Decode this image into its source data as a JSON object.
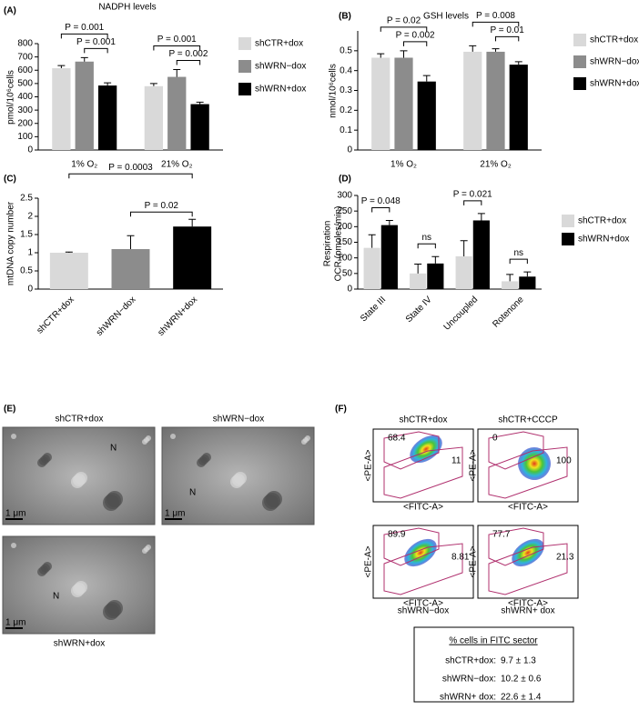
{
  "chart_data": [
    {
      "type": "bar",
      "panel_label": "(A)",
      "title": "NADPH levels",
      "y_label": [
        "pmol/10⁶cells"
      ],
      "categories": [
        "1% O₂",
        "21% O₂"
      ],
      "series": [
        {
          "name": "shCTR+dox",
          "color": "#d9d9d9",
          "values": [
            615,
            480
          ],
          "errors": [
            20,
            20
          ]
        },
        {
          "name": "shWRN−dox",
          "color": "#8c8c8c",
          "values": [
            665,
            550
          ],
          "errors": [
            30,
            55
          ]
        },
        {
          "name": "shWRN+dox",
          "color": "#000000",
          "values": [
            485,
            345
          ],
          "errors": [
            20,
            15
          ]
        }
      ],
      "ylim": [
        0,
        800
      ],
      "yticks": [
        0,
        100,
        200,
        300,
        400,
        500,
        600,
        700,
        800
      ],
      "legend": "right",
      "annotations": [
        {
          "text": "P = 0.001",
          "category": 0,
          "from": 0,
          "to": 2
        },
        {
          "text": "P = 0.001",
          "category": 0,
          "from": 1,
          "to": 2
        },
        {
          "text": "P = 0.001",
          "category": 1,
          "from": 0,
          "to": 2
        },
        {
          "text": "P = 0.002",
          "category": 1,
          "from": 1,
          "to": 2
        }
      ]
    },
    {
      "type": "bar",
      "panel_label": "(B)",
      "title": "GSH levels",
      "y_label": [
        "nmol/10⁶cells"
      ],
      "categories": [
        "1% O₂",
        "21% O₂"
      ],
      "series": [
        {
          "name": "shCTR+dox",
          "color": "#d9d9d9",
          "values": [
            0.465,
            0.495
          ],
          "errors": [
            0.02,
            0.03
          ]
        },
        {
          "name": "shWRN−dox",
          "color": "#8c8c8c",
          "values": [
            0.465,
            0.495
          ],
          "errors": [
            0.035,
            0.015
          ]
        },
        {
          "name": "shWRN+dox",
          "color": "#000000",
          "values": [
            0.345,
            0.43
          ],
          "errors": [
            0.03,
            0.015
          ]
        }
      ],
      "ylim": [
        0,
        0.6
      ],
      "yticks": [
        0,
        0.1,
        0.2,
        0.3,
        0.4,
        0.5
      ],
      "legend": "right",
      "annotations": [
        {
          "text": "P = 0.02",
          "category": 0,
          "from": 0,
          "to": 2
        },
        {
          "text": "P = 0.002",
          "category": 0,
          "from": 1,
          "to": 2
        },
        {
          "text": "P = 0.008",
          "category": 1,
          "from": 0,
          "to": 2
        },
        {
          "text": "P = 0.01",
          "category": 1,
          "from": 1,
          "to": 2
        }
      ]
    },
    {
      "type": "bar",
      "panel_label": "(C)",
      "y_label": [
        "mtDNA copy number"
      ],
      "categories": [
        "shCTR+dox",
        "shWRN−dox",
        "shWRN+dox"
      ],
      "values": [
        1.0,
        1.1,
        1.72
      ],
      "errors": [
        0.02,
        0.37,
        0.2
      ],
      "colors": [
        "#d9d9d9",
        "#8c8c8c",
        "#000000"
      ],
      "ylim": [
        0,
        2.5
      ],
      "yticks": [
        0,
        0.5,
        1,
        1.5,
        2,
        2.5
      ],
      "annotations": [
        {
          "text": "P = 0.0003",
          "from": 0,
          "to": 2
        },
        {
          "text": "P = 0.02",
          "from": 1,
          "to": 2
        }
      ]
    },
    {
      "type": "bar",
      "panel_label": "(D)",
      "y_label": [
        "Respiration",
        "OCR (pmoles/min)"
      ],
      "categories": [
        "State III",
        "State IV",
        "Uncoupled",
        "Rotenone"
      ],
      "series": [
        {
          "name": "shCTR+dox",
          "color": "#d9d9d9",
          "values": [
            132,
            50,
            105,
            25
          ],
          "errors": [
            42,
            30,
            50,
            22
          ]
        },
        {
          "name": "shWRN+dox",
          "color": "#000000",
          "values": [
            205,
            82,
            220,
            40
          ],
          "errors": [
            15,
            22,
            22,
            15
          ]
        }
      ],
      "ylim": [
        0,
        300
      ],
      "yticks": [
        0,
        50,
        100,
        150,
        200,
        250,
        300
      ],
      "legend": "right",
      "annotations": [
        {
          "text": "P = 0.048",
          "category": 0,
          "from": 0,
          "to": 1
        },
        {
          "text": "ns",
          "category": 1,
          "from": 0,
          "to": 1
        },
        {
          "text": "P = 0.021",
          "category": 2,
          "from": 0,
          "to": 1
        },
        {
          "text": "ns",
          "category": 3,
          "from": 0,
          "to": 1
        }
      ]
    }
  ],
  "micrographs": {
    "panel_label": "(E)",
    "images": [
      {
        "title": "shCTR+dox",
        "nucleus": "N",
        "scale_bar": "1 μm"
      },
      {
        "title": "shWRN−dox",
        "nucleus": "N",
        "scale_bar": "1 μm"
      },
      {
        "title": "shWRN+dox",
        "nucleus": "N",
        "scale_bar": "1 μm"
      }
    ]
  },
  "flow_cytometry": {
    "panel_label": "(F)",
    "x_axis": "<FITC-A>",
    "y_axis": "<PE-A>",
    "plots": [
      {
        "title": "shCTR+dox",
        "upper_gate": "68.4",
        "lower_gate": "11"
      },
      {
        "title": "shCTR+CCCP",
        "upper_gate": "0",
        "lower_gate": "100"
      },
      {
        "title": "shWRN−dox",
        "upper_gate": "89.9",
        "lower_gate": "8.81"
      },
      {
        "title": "shWRN+ dox",
        "upper_gate": "77.7",
        "lower_gate": "21.3"
      }
    ],
    "table": {
      "title": "% cells in FITC sector",
      "rows": [
        [
          "shCTR+dox:",
          "9.7 ± 1.3"
        ],
        [
          "shWRN−dox:",
          "10.2 ± 0.6"
        ],
        [
          "shWRN+ dox:",
          "22.6 ± 1.4"
        ]
      ]
    }
  }
}
